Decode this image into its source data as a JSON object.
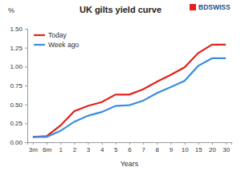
{
  "chart_data": {
    "type": "line",
    "title": "UK gilts yield curve",
    "ylabel": "%",
    "xlabel": "Years",
    "annotations": [
      "BDSWISS"
    ],
    "categories": [
      "3m",
      "6m",
      "1",
      "2",
      "3",
      "4",
      "5",
      "6",
      "7",
      "8",
      "9",
      "10",
      "15",
      "20",
      "30"
    ],
    "series": [
      {
        "name": "Today",
        "color": "#e3211c",
        "values": [
          0.07,
          0.08,
          0.22,
          0.41,
          0.48,
          0.53,
          0.63,
          0.63,
          0.7,
          0.8,
          0.89,
          0.99,
          1.18,
          1.29,
          1.29
        ]
      },
      {
        "name": "Week ago",
        "color": "#3a8ee0",
        "values": [
          0.07,
          0.07,
          0.15,
          0.27,
          0.35,
          0.4,
          0.48,
          0.49,
          0.55,
          0.65,
          0.73,
          0.81,
          1.01,
          1.11,
          1.11
        ]
      }
    ],
    "ylim": [
      0,
      1.5
    ],
    "yticks": [
      {
        "value": 0,
        "label": "0.00"
      },
      {
        "value": 0.25,
        "label": "0.25"
      },
      {
        "value": 0.5,
        "label": "0.50"
      },
      {
        "value": 0.75,
        "label": "0.75"
      },
      {
        "value": 1,
        "label": "1.00"
      },
      {
        "value": 1.25,
        "label": "1.25"
      },
      {
        "value": 1.5,
        "label": "1.50"
      }
    ],
    "grid": false,
    "legend": "upper left"
  }
}
